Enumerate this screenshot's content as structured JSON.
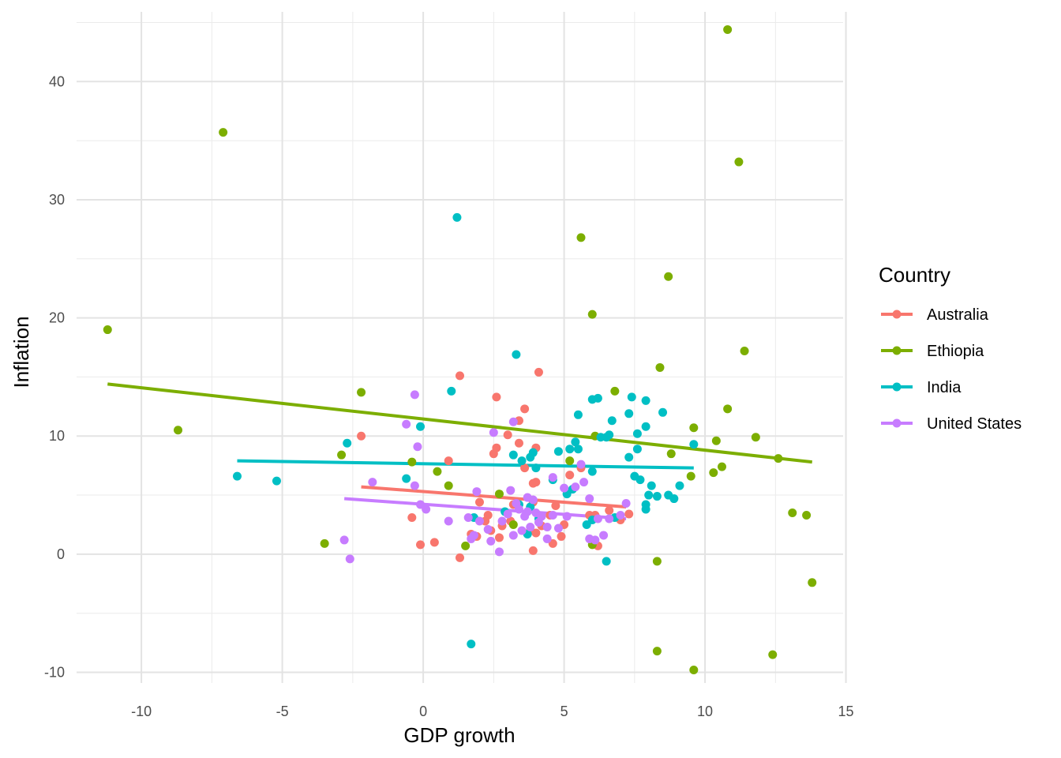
{
  "chart_data": {
    "type": "scatter",
    "title": "",
    "xlabel": "GDP growth",
    "ylabel": "Inflation",
    "xlim": [
      -12.3,
      14.9
    ],
    "ylim": [
      -10.9,
      45.9
    ],
    "x_ticks": [
      -10,
      -5,
      0,
      5,
      10,
      15
    ],
    "x_tick_labels": [
      "-10",
      "-5",
      "0",
      "5",
      "10",
      "15"
    ],
    "y_ticks": [
      -10,
      0,
      10,
      20,
      30,
      40
    ],
    "y_tick_labels": [
      "-10",
      "0",
      "10",
      "20",
      "30",
      "40"
    ],
    "grid": true,
    "legend": {
      "title": "Country",
      "position": "right"
    },
    "series": [
      {
        "name": "Australia",
        "color": "#F8766D",
        "trend": [
          [
            -2.2,
            5.7
          ],
          [
            7.2,
            4.0
          ]
        ],
        "points": [
          [
            -2.2,
            10.0
          ],
          [
            -0.4,
            3.1
          ],
          [
            -0.1,
            0.8
          ],
          [
            0.4,
            1.0
          ],
          [
            0.9,
            7.9
          ],
          [
            1.3,
            15.1
          ],
          [
            1.3,
            -0.3
          ],
          [
            1.7,
            1.7
          ],
          [
            1.9,
            1.5
          ],
          [
            2.0,
            4.4
          ],
          [
            2.2,
            2.8
          ],
          [
            2.3,
            3.3
          ],
          [
            2.4,
            2.0
          ],
          [
            2.5,
            8.5
          ],
          [
            2.6,
            9.0
          ],
          [
            2.6,
            13.3
          ],
          [
            2.7,
            1.4
          ],
          [
            2.8,
            2.4
          ],
          [
            3.0,
            10.1
          ],
          [
            3.1,
            2.8
          ],
          [
            3.2,
            4.2
          ],
          [
            3.4,
            11.3
          ],
          [
            3.4,
            9.4
          ],
          [
            3.6,
            12.3
          ],
          [
            3.6,
            7.3
          ],
          [
            3.8,
            2.0
          ],
          [
            3.9,
            0.3
          ],
          [
            3.9,
            6.0
          ],
          [
            3.9,
            4.4
          ],
          [
            4.0,
            9.0
          ],
          [
            4.0,
            6.1
          ],
          [
            4.0,
            1.8
          ],
          [
            4.1,
            15.4
          ],
          [
            4.2,
            2.4
          ],
          [
            4.5,
            3.3
          ],
          [
            4.6,
            0.9
          ],
          [
            4.7,
            4.1
          ],
          [
            4.9,
            1.5
          ],
          [
            5.0,
            2.5
          ],
          [
            5.2,
            6.7
          ],
          [
            5.6,
            7.3
          ],
          [
            5.9,
            3.3
          ],
          [
            6.1,
            3.3
          ],
          [
            6.2,
            0.7
          ],
          [
            6.6,
            3.7
          ],
          [
            7.0,
            2.9
          ],
          [
            7.3,
            3.4
          ]
        ]
      },
      {
        "name": "Ethiopia",
        "color": "#7CAE00",
        "trend": [
          [
            -11.2,
            14.4
          ],
          [
            13.8,
            7.8
          ]
        ],
        "points": [
          [
            -11.2,
            19.0
          ],
          [
            -8.7,
            10.5
          ],
          [
            -7.1,
            35.7
          ],
          [
            -3.5,
            0.9
          ],
          [
            -2.9,
            8.4
          ],
          [
            -2.2,
            13.7
          ],
          [
            -0.4,
            7.8
          ],
          [
            0.5,
            7.0
          ],
          [
            0.9,
            5.8
          ],
          [
            1.5,
            0.7
          ],
          [
            2.7,
            5.1
          ],
          [
            3.2,
            2.5
          ],
          [
            5.2,
            7.9
          ],
          [
            5.6,
            26.8
          ],
          [
            6.0,
            20.3
          ],
          [
            6.0,
            0.8
          ],
          [
            6.1,
            10.0
          ],
          [
            6.8,
            13.8
          ],
          [
            8.3,
            -0.6
          ],
          [
            8.3,
            -8.2
          ],
          [
            8.4,
            15.8
          ],
          [
            8.7,
            23.5
          ],
          [
            8.8,
            8.5
          ],
          [
            9.5,
            6.6
          ],
          [
            9.6,
            10.7
          ],
          [
            9.6,
            -9.8
          ],
          [
            10.3,
            6.9
          ],
          [
            10.4,
            9.6
          ],
          [
            10.6,
            7.4
          ],
          [
            10.8,
            44.4
          ],
          [
            10.8,
            12.3
          ],
          [
            11.2,
            33.2
          ],
          [
            11.4,
            17.2
          ],
          [
            11.8,
            9.9
          ],
          [
            12.4,
            -8.5
          ],
          [
            12.6,
            8.1
          ],
          [
            13.1,
            3.5
          ],
          [
            13.6,
            3.3
          ],
          [
            13.8,
            -2.4
          ]
        ]
      },
      {
        "name": "India",
        "color": "#00BFC4",
        "trend": [
          [
            -6.6,
            7.9
          ],
          [
            9.6,
            7.3
          ]
        ],
        "points": [
          [
            -6.6,
            6.6
          ],
          [
            -5.2,
            6.2
          ],
          [
            -2.7,
            9.4
          ],
          [
            -0.6,
            6.4
          ],
          [
            -0.1,
            10.8
          ],
          [
            1.0,
            13.8
          ],
          [
            1.2,
            28.5
          ],
          [
            1.7,
            -7.6
          ],
          [
            1.8,
            3.1
          ],
          [
            2.9,
            3.6
          ],
          [
            3.2,
            8.4
          ],
          [
            3.3,
            16.9
          ],
          [
            3.4,
            4.2
          ],
          [
            3.5,
            7.9
          ],
          [
            3.7,
            1.7
          ],
          [
            3.8,
            8.2
          ],
          [
            3.8,
            4.0
          ],
          [
            3.9,
            8.6
          ],
          [
            4.0,
            7.3
          ],
          [
            4.1,
            3.0
          ],
          [
            4.6,
            6.3
          ],
          [
            4.8,
            8.7
          ],
          [
            5.1,
            5.1
          ],
          [
            5.2,
            8.9
          ],
          [
            5.3,
            5.5
          ],
          [
            5.4,
            9.5
          ],
          [
            5.5,
            11.8
          ],
          [
            5.5,
            8.9
          ],
          [
            5.8,
            2.5
          ],
          [
            6.0,
            13.1
          ],
          [
            6.0,
            7.0
          ],
          [
            6.0,
            2.9
          ],
          [
            6.2,
            13.2
          ],
          [
            6.3,
            9.9
          ],
          [
            6.5,
            9.9
          ],
          [
            6.5,
            -0.6
          ],
          [
            6.6,
            10.1
          ],
          [
            6.7,
            11.3
          ],
          [
            6.8,
            3.1
          ],
          [
            7.3,
            11.9
          ],
          [
            7.3,
            8.2
          ],
          [
            7.4,
            13.3
          ],
          [
            7.5,
            6.6
          ],
          [
            7.6,
            8.9
          ],
          [
            7.6,
            10.2
          ],
          [
            7.7,
            6.3
          ],
          [
            7.9,
            13.0
          ],
          [
            7.9,
            10.8
          ],
          [
            7.9,
            4.2
          ],
          [
            7.9,
            3.8
          ],
          [
            8.0,
            5.0
          ],
          [
            8.1,
            5.8
          ],
          [
            8.3,
            4.9
          ],
          [
            8.5,
            12.0
          ],
          [
            8.7,
            5.0
          ],
          [
            8.9,
            4.7
          ],
          [
            9.1,
            5.8
          ],
          [
            9.6,
            9.3
          ]
        ]
      },
      {
        "name": "United States",
        "color": "#C77CFF",
        "trend": [
          [
            -2.8,
            4.7
          ],
          [
            7.2,
            3.0
          ]
        ],
        "points": [
          [
            -2.8,
            1.2
          ],
          [
            -2.6,
            -0.4
          ],
          [
            -1.8,
            6.1
          ],
          [
            -0.6,
            11.0
          ],
          [
            -0.3,
            13.5
          ],
          [
            -0.3,
            5.8
          ],
          [
            -0.2,
            9.1
          ],
          [
            -0.1,
            4.2
          ],
          [
            0.1,
            3.8
          ],
          [
            0.9,
            2.8
          ],
          [
            1.6,
            3.1
          ],
          [
            1.7,
            1.3
          ],
          [
            1.8,
            1.6
          ],
          [
            1.9,
            5.3
          ],
          [
            2.0,
            2.8
          ],
          [
            2.3,
            2.1
          ],
          [
            2.4,
            1.1
          ],
          [
            2.5,
            10.3
          ],
          [
            2.7,
            0.2
          ],
          [
            2.8,
            2.8
          ],
          [
            3.0,
            3.4
          ],
          [
            3.1,
            5.4
          ],
          [
            3.2,
            11.2
          ],
          [
            3.2,
            1.6
          ],
          [
            3.3,
            4.3
          ],
          [
            3.4,
            3.8
          ],
          [
            3.5,
            2.0
          ],
          [
            3.6,
            3.2
          ],
          [
            3.7,
            4.8
          ],
          [
            3.7,
            3.6
          ],
          [
            3.8,
            2.3
          ],
          [
            3.9,
            4.6
          ],
          [
            4.0,
            3.5
          ],
          [
            4.1,
            2.7
          ],
          [
            4.2,
            3.2
          ],
          [
            4.4,
            2.3
          ],
          [
            4.4,
            1.3
          ],
          [
            4.6,
            6.5
          ],
          [
            4.6,
            3.3
          ],
          [
            4.8,
            2.2
          ],
          [
            5.0,
            5.6
          ],
          [
            5.1,
            3.2
          ],
          [
            5.4,
            5.7
          ],
          [
            5.6,
            7.6
          ],
          [
            5.7,
            6.1
          ],
          [
            5.9,
            4.7
          ],
          [
            5.9,
            1.3
          ],
          [
            6.1,
            1.2
          ],
          [
            6.2,
            3.0
          ],
          [
            6.4,
            1.6
          ],
          [
            6.6,
            3.0
          ],
          [
            7.0,
            3.3
          ],
          [
            7.2,
            4.3
          ]
        ]
      }
    ]
  }
}
